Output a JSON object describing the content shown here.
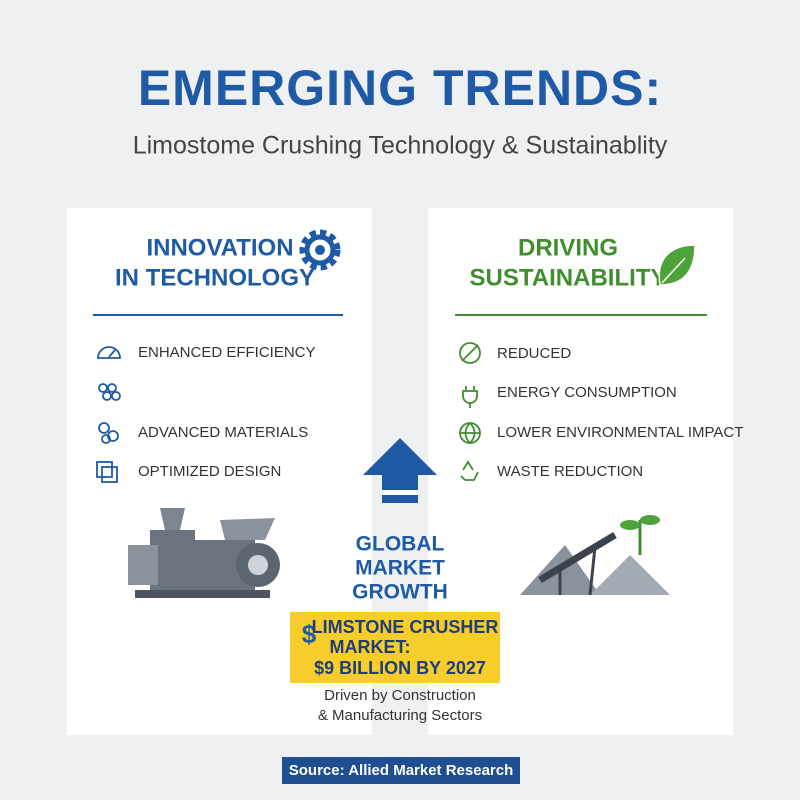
{
  "header": {
    "title": "EMERGING TRENDS:",
    "subtitle": "Limostome Crushing Technology & Sustainablity"
  },
  "innovation": {
    "heading": [
      "INNOVATION",
      "IN TECHNOLOGY"
    ],
    "items": [
      "ENHANCED EFFICIENCY",
      "ADVANCED MATERIALS",
      "OPTIMIZED DESIGN"
    ]
  },
  "sustainability": {
    "heading": [
      "DRIVING",
      "SUSTAINABILITY"
    ],
    "items": [
      "REDUCED",
      "ENERGY CONSUMPTION",
      "LOWER ENVIRONMENTAL IMPACT",
      "WASTE REDUCTION"
    ]
  },
  "growth": {
    "label": [
      "GLOBAL",
      "MARKET",
      "GROWTH"
    ],
    "market": {
      "symbol": "$",
      "lines": [
        "LIMSTONE CRUSHER",
        "MARKET:",
        "$9 BILLION BY 2027"
      ]
    },
    "caption": [
      "Driven by Construction",
      "& Manufacturing Sectors"
    ]
  },
  "source": "Source: Allied Market Research"
}
